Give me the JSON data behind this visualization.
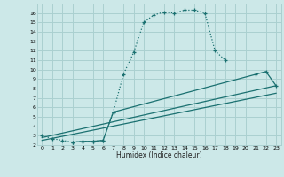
{
  "xlabel": "Humidex (Indice chaleur)",
  "xlim": [
    -0.5,
    23.5
  ],
  "ylim": [
    2,
    17
  ],
  "xticks": [
    0,
    1,
    2,
    3,
    4,
    5,
    6,
    7,
    8,
    9,
    10,
    11,
    12,
    13,
    14,
    15,
    16,
    17,
    18,
    19,
    20,
    21,
    22,
    23
  ],
  "yticks": [
    2,
    3,
    4,
    5,
    6,
    7,
    8,
    9,
    10,
    11,
    12,
    13,
    14,
    15,
    16
  ],
  "bg_color": "#cce8e8",
  "grid_color": "#aad0d0",
  "line_color": "#1a7070",
  "curve_main_x": [
    0,
    1,
    2,
    3,
    4,
    5,
    6,
    7,
    8,
    9,
    10,
    11,
    12,
    13,
    14,
    15,
    16,
    17,
    18
  ],
  "curve_main_y": [
    3.0,
    2.7,
    2.5,
    2.3,
    2.4,
    2.4,
    2.5,
    5.5,
    9.5,
    11.8,
    15.0,
    15.8,
    16.1,
    16.0,
    16.3,
    16.3,
    16.0,
    12.0,
    11.0
  ],
  "curve_sec_x": [
    3,
    4,
    5,
    6,
    7,
    21,
    22,
    23
  ],
  "curve_sec_y": [
    2.3,
    2.4,
    2.4,
    2.5,
    5.5,
    9.5,
    9.8,
    8.3
  ],
  "line1_x": [
    0,
    23
  ],
  "line1_y": [
    2.8,
    8.3
  ],
  "line2_x": [
    0,
    23
  ],
  "line2_y": [
    2.5,
    7.5
  ]
}
